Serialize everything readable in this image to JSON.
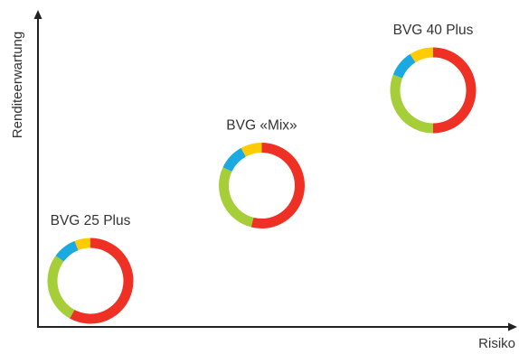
{
  "chart_data": {
    "type": "scatter",
    "title": "",
    "xlabel": "Risiko",
    "ylabel": "Renditeerwartung",
    "grid": false,
    "legend": "none",
    "points": [
      {
        "label": "BVG 25 Plus",
        "risk_rank": 1,
        "return_rank": 1,
        "allocation": [
          {
            "color": "#ee3124",
            "share": 0.58
          },
          {
            "color": "#a6ce39",
            "share": 0.27
          },
          {
            "color": "#1ba9e1",
            "share": 0.09
          },
          {
            "color": "#ffcc00",
            "share": 0.06
          }
        ]
      },
      {
        "label": "BVG «Mix»",
        "risk_rank": 2,
        "return_rank": 2,
        "allocation": [
          {
            "color": "#ee3124",
            "share": 0.54
          },
          {
            "color": "#a6ce39",
            "share": 0.28
          },
          {
            "color": "#1ba9e1",
            "share": 0.1
          },
          {
            "color": "#ffcc00",
            "share": 0.08
          }
        ]
      },
      {
        "label": "BVG 40 Plus",
        "risk_rank": 3,
        "return_rank": 3,
        "allocation": [
          {
            "color": "#ee3124",
            "share": 0.5
          },
          {
            "color": "#a6ce39",
            "share": 0.31
          },
          {
            "color": "#1ba9e1",
            "share": 0.1
          },
          {
            "color": "#ffcc00",
            "share": 0.09
          }
        ]
      }
    ]
  },
  "colors": {
    "axis": "#222222",
    "text": "#333333"
  }
}
